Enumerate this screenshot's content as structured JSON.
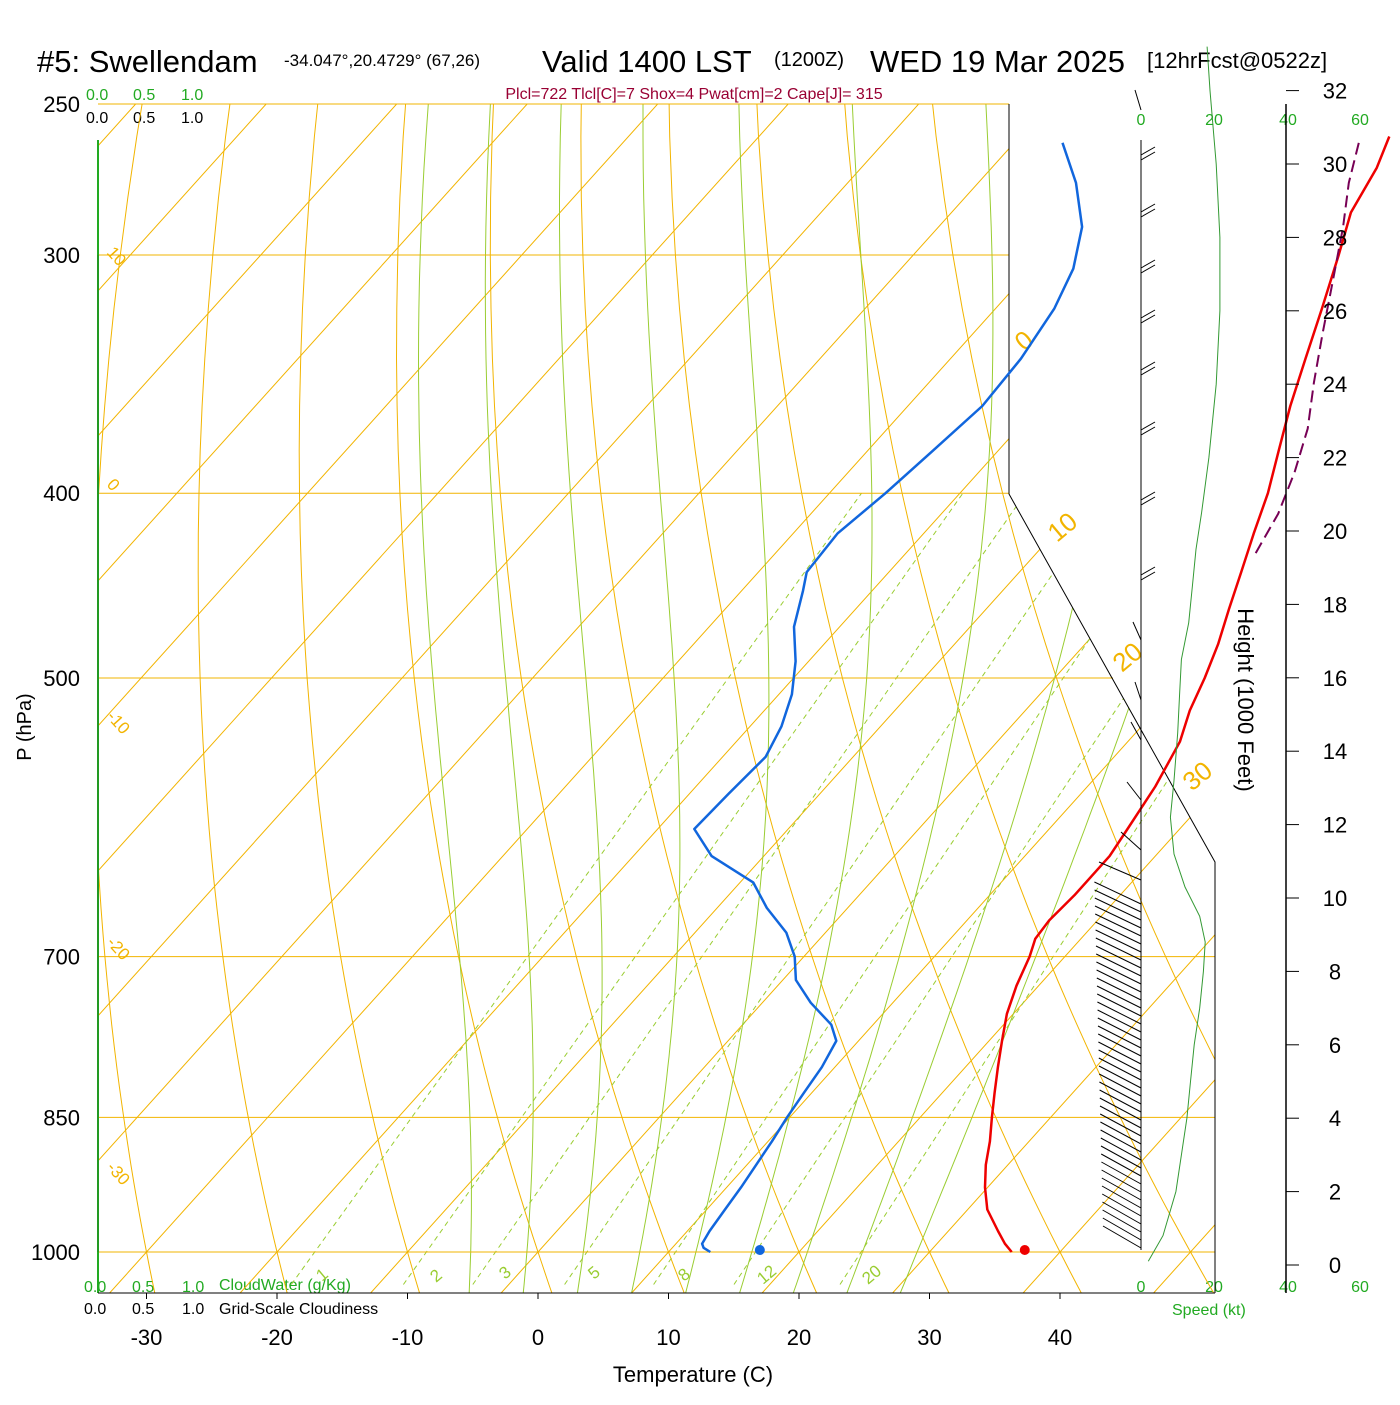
{
  "header": {
    "station": "#5: Swellendam",
    "coords": "-34.047°,20.4729° (67,26)",
    "valid": "Valid 1400 LST",
    "zulu": "(1200Z)",
    "date": "WED 19 Mar 2025",
    "forecast": "[12hrFcst@0522z]",
    "indices": "Plcl=722 Tlcl[C]=7 Shox=4 Pwat[cm]=2 Cape[J]= 315"
  },
  "chart_data": {
    "type": "line",
    "diagram": "skew-T log-P",
    "xlabel": "Temperature (C)",
    "ylabel": "P (hPa)",
    "y2label": "Height (1000 Feet)",
    "x_ticks": [
      -30,
      -20,
      -10,
      0,
      10,
      20,
      30,
      40
    ],
    "y_ticks": [
      250,
      300,
      400,
      500,
      700,
      850,
      1000
    ],
    "y2_ticks": [
      0,
      2,
      4,
      6,
      8,
      10,
      12,
      14,
      16,
      18,
      20,
      22,
      24,
      26,
      28,
      30,
      32
    ],
    "cloud_scale_top": [
      "0.0",
      "0.5",
      "1.0"
    ],
    "cloud_scale_bottom": [
      "0.0",
      "0.5",
      "1.0"
    ],
    "cloudwater_label": "CloudWater (g/Kg)",
    "cloudiness_label": "Grid-Scale Cloudiness",
    "speed_label": "Speed (kt)",
    "speed_ticks_top": [
      "0",
      "20",
      "40",
      "60"
    ],
    "speed_ticks_bottom": [
      "0",
      "20",
      "40",
      "60"
    ],
    "isotherm_labels": [
      "10",
      "0",
      "-10",
      "-20",
      "-30"
    ],
    "right_isotherm_labels": [
      "0",
      "10",
      "20",
      "30"
    ],
    "mixing_ratio_labels": [
      "1",
      "2",
      "3",
      "5",
      "8",
      "12",
      "20"
    ],
    "series": [
      {
        "name": "Temperature",
        "color": "#ee0000",
        "points": [
          [
            1000,
            36.3
          ],
          [
            990,
            35.2
          ],
          [
            975,
            33.8
          ],
          [
            950,
            31.5
          ],
          [
            925,
            29.8
          ],
          [
            900,
            28.3
          ],
          [
            875,
            27.0
          ],
          [
            850,
            25.5
          ],
          [
            825,
            24.0
          ],
          [
            800,
            22.5
          ],
          [
            775,
            21.0
          ],
          [
            750,
            19.5
          ],
          [
            725,
            18.3
          ],
          [
            700,
            17.3
          ],
          [
            685,
            16.5
          ],
          [
            670,
            16.3
          ],
          [
            650,
            16.5
          ],
          [
            620,
            16.5
          ],
          [
            600,
            16.0
          ],
          [
            570,
            15.2
          ],
          [
            540,
            14.0
          ],
          [
            520,
            12.6
          ],
          [
            500,
            11.5
          ],
          [
            480,
            10.2
          ],
          [
            460,
            8.6
          ],
          [
            440,
            7.0
          ],
          [
            420,
            5.3
          ],
          [
            400,
            3.6
          ],
          [
            380,
            1.5
          ],
          [
            360,
            -0.7
          ],
          [
            340,
            -2.8
          ],
          [
            320,
            -5.0
          ],
          [
            300,
            -7.4
          ],
          [
            285,
            -9.4
          ],
          [
            270,
            -10.5
          ],
          [
            260,
            -11.7
          ]
        ]
      },
      {
        "name": "Dewpoint",
        "color": "#1166dd",
        "points": [
          [
            1000,
            13.2
          ],
          [
            995,
            12.4
          ],
          [
            990,
            12.0
          ],
          [
            975,
            11.7
          ],
          [
            950,
            11.4
          ],
          [
            925,
            11.1
          ],
          [
            900,
            10.7
          ],
          [
            875,
            10.3
          ],
          [
            850,
            9.8
          ],
          [
            825,
            9.4
          ],
          [
            800,
            9.0
          ],
          [
            775,
            8.3
          ],
          [
            760,
            6.8
          ],
          [
            740,
            3.7
          ],
          [
            720,
            1.0
          ],
          [
            700,
            -0.7
          ],
          [
            680,
            -3.0
          ],
          [
            660,
            -6.2
          ],
          [
            640,
            -9.0
          ],
          [
            620,
            -14.0
          ],
          [
            600,
            -17.2
          ],
          [
            575,
            -17.0
          ],
          [
            550,
            -16.7
          ],
          [
            530,
            -17.6
          ],
          [
            510,
            -19.0
          ],
          [
            490,
            -21.0
          ],
          [
            470,
            -23.5
          ],
          [
            450,
            -25.3
          ],
          [
            440,
            -26.3
          ],
          [
            420,
            -26.6
          ],
          [
            400,
            -25.7
          ],
          [
            380,
            -25.0
          ],
          [
            360,
            -24.3
          ],
          [
            340,
            -24.6
          ],
          [
            320,
            -25.5
          ],
          [
            305,
            -26.8
          ],
          [
            290,
            -29.0
          ],
          [
            275,
            -32.5
          ],
          [
            262,
            -36.3
          ]
        ]
      },
      {
        "name": "Parcel",
        "color": "#770055",
        "points": [
          [
            430,
            6.8
          ],
          [
            410,
            5.8
          ],
          [
            390,
            4.2
          ],
          [
            370,
            2.2
          ],
          [
            350,
            -0.5
          ],
          [
            330,
            -3.2
          ],
          [
            310,
            -6.0
          ],
          [
            290,
            -9.0
          ],
          [
            275,
            -11.6
          ],
          [
            262,
            -13.6
          ]
        ]
      },
      {
        "name": "Cloud fraction",
        "color": "#229922",
        "points": [
          [
            300,
            0.0
          ],
          [
            1000,
            0.0
          ]
        ]
      },
      {
        "name": "Wind speed",
        "color": "#339933",
        "points": [
          [
            0.1,
            2.0
          ],
          [
            0.8,
            6.0
          ],
          [
            2.0,
            9.5
          ],
          [
            3.0,
            11.0
          ],
          [
            4.0,
            12.5
          ],
          [
            5.0,
            13.5
          ],
          [
            6.0,
            14.5
          ],
          [
            7.0,
            16.0
          ],
          [
            8.0,
            17.0
          ],
          [
            8.8,
            17.5
          ],
          [
            9.5,
            16.0
          ],
          [
            10.3,
            12.0
          ],
          [
            11.2,
            9.0
          ],
          [
            12.2,
            8.0
          ],
          [
            13.2,
            9.0
          ],
          [
            14.5,
            10.0
          ],
          [
            15.5,
            10.5
          ],
          [
            16.5,
            11.0
          ],
          [
            17.5,
            13.0
          ],
          [
            18.5,
            14.0
          ],
          [
            19.5,
            15.0
          ],
          [
            20.5,
            16.5
          ],
          [
            22.0,
            18.5
          ],
          [
            24.0,
            20.5
          ],
          [
            26.0,
            21.5
          ],
          [
            28.0,
            21.5
          ],
          [
            30.0,
            20.5
          ],
          [
            32.0,
            18.8
          ],
          [
            33.2,
            18.0
          ]
        ]
      }
    ],
    "surface_temperature": 37.3,
    "surface_dewpoint": 17.0
  }
}
